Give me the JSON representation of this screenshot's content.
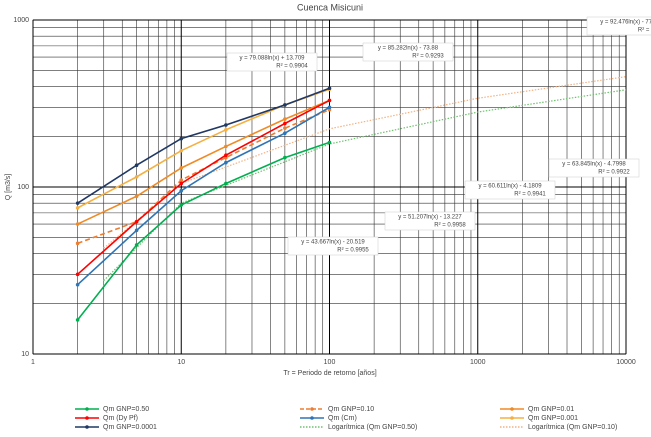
{
  "chart_data": {
    "type": "line",
    "title": "Cuenca Misicuni",
    "x_label": "Tr = Periodo de retorno [años]",
    "y_label": "Q [m3/s]",
    "log_x": true,
    "log_y": true,
    "grid": true,
    "xlim": [
      1,
      10000
    ],
    "xticks": [
      1,
      10,
      100,
      1000,
      10000
    ],
    "ylim": [
      10,
      1000
    ],
    "yticks": [
      10,
      100,
      1000
    ],
    "x": [
      2,
      5,
      10,
      20,
      50,
      100
    ],
    "series": [
      {
        "name": "Qm GNP=0.50",
        "color": "#00b050",
        "values": [
          16,
          45,
          78,
          105,
          150,
          185
        ]
      },
      {
        "name": "Qm GNP=0.10",
        "color": "#ed7d31",
        "dash": true,
        "values": [
          46,
          62,
          110,
          150,
          225,
          290
        ]
      },
      {
        "name": "Qm GNP=0.01",
        "color": "#f08a24",
        "values": [
          60,
          88,
          130,
          175,
          255,
          330
        ]
      },
      {
        "name": "Qm (Dy Pf)",
        "color": "#ff0000",
        "values": [
          30,
          62,
          105,
          155,
          240,
          330
        ]
      },
      {
        "name": "Qm (Cm)",
        "color": "#2e75b6",
        "values": [
          26,
          55,
          95,
          140,
          210,
          300
        ]
      },
      {
        "name": "Qm GNP=0.001",
        "color": "#f5b041",
        "values": [
          75,
          115,
          165,
          220,
          310,
          385
        ]
      },
      {
        "name": "Qm GNP=0.0001",
        "color": "#1f3864",
        "values": [
          80,
          135,
          195,
          235,
          310,
          390
        ]
      }
    ],
    "trendlines": [
      {
        "name": "Logarítmica (Qm GNP=0.50)",
        "color": "#70c070",
        "x": [
          3,
          10,
          100,
          1000,
          10000
        ],
        "values": [
          27.5,
          80,
          181,
          281,
          382
        ]
      },
      {
        "name": "Logarítmica (Qm GNP=0.10)",
        "color": "#f4b183",
        "x": [
          3,
          10,
          100,
          1000,
          10000
        ],
        "values": [
          43,
          105,
          223,
          340,
          458
        ]
      }
    ],
    "annotations": [
      {
        "line1": "y = 79.088ln(x) + 13.709",
        "line2": "R² = 0.9904"
      },
      {
        "line1": "y = 85.282ln(x) - 73.88",
        "line2": "R² = 0.9293"
      },
      {
        "line1": "y = 92.476ln(x) - 77.333",
        "line2": "R² = 0.932"
      },
      {
        "line1": "y = 63.845ln(x) - 4.7998",
        "line2": "R² = 0.9922"
      },
      {
        "line1": "y = 60.611ln(x) - 4.1809",
        "line2": "R² = 0.9941"
      },
      {
        "line1": "y = 51.207ln(x) - 13.227",
        "line2": "R² = 0.9958"
      },
      {
        "line1": "y = 43.667ln(x) - 20.519",
        "line2": "R² = 0.9955"
      }
    ]
  }
}
